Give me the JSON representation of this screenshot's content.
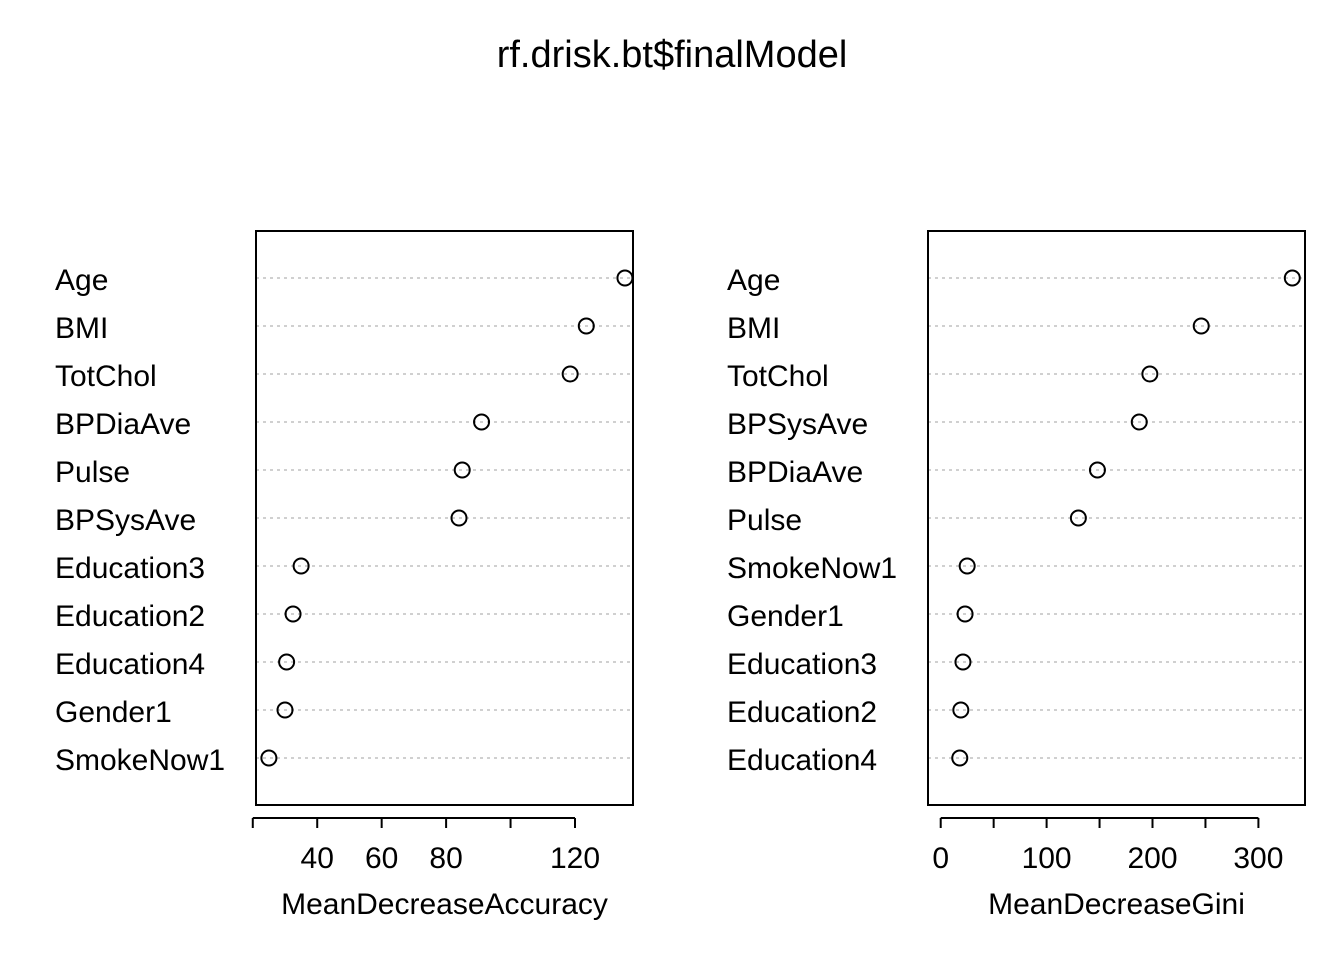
{
  "title": "rf.drisk.bt$finalModel",
  "chart_data": [
    {
      "type": "scatter",
      "style": "dotchart",
      "xlabel": "MeanDecreaseAccuracy",
      "xlim": [
        21,
        138
      ],
      "xticks": [
        20,
        40,
        60,
        80,
        100,
        120
      ],
      "xtick_labels": [
        "",
        "40",
        "60",
        "80",
        "",
        "120"
      ],
      "categories": [
        "Age",
        "BMI",
        "TotChol",
        "BPDiaAve",
        "Pulse",
        "BPSysAve",
        "Education3",
        "Education2",
        "Education4",
        "Gender1",
        "SmokeNow1"
      ],
      "values": [
        135.5,
        123.5,
        118.5,
        91,
        85,
        84,
        35,
        32.5,
        30.5,
        30,
        25
      ],
      "grid": "horizontal dotted"
    },
    {
      "type": "scatter",
      "style": "dotchart",
      "xlabel": "MeanDecreaseGini",
      "xlim": [
        -12,
        344
      ],
      "xticks": [
        0,
        50,
        100,
        150,
        200,
        250,
        300
      ],
      "xtick_labels": [
        "0",
        "",
        "100",
        "",
        "200",
        "",
        "300"
      ],
      "categories": [
        "Age",
        "BMI",
        "TotChol",
        "BPSysAve",
        "BPDiaAve",
        "Pulse",
        "SmokeNow1",
        "Gender1",
        "Education3",
        "Education2",
        "Education4"
      ],
      "values": [
        332,
        246,
        197.5,
        187.5,
        148,
        130,
        25,
        23,
        21,
        19,
        18
      ],
      "grid": "horizontal dotted"
    }
  ]
}
